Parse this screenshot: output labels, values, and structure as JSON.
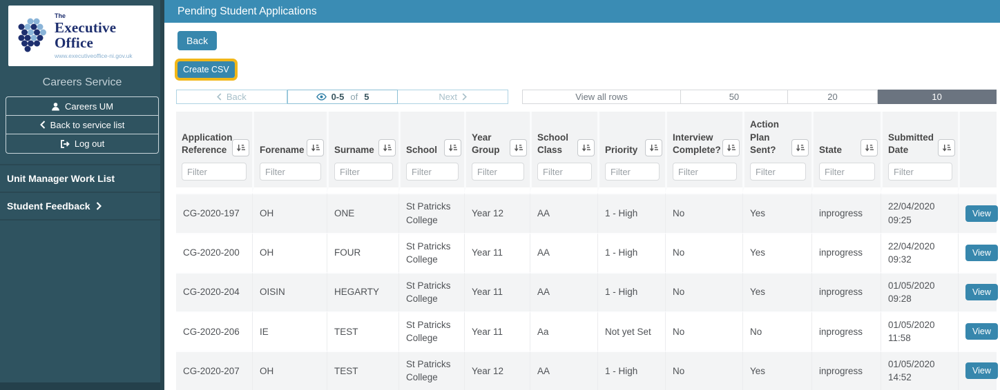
{
  "sidebar": {
    "logo": {
      "the": "The",
      "title": "Executive Office",
      "url": "www.executiveoffice-ni.gov.uk"
    },
    "service_title": "Careers Service",
    "menu": [
      {
        "label": "Careers UM",
        "icon": "user-icon"
      },
      {
        "label": "Back to service list",
        "icon": "chevron-left-icon"
      },
      {
        "label": "Log out",
        "icon": "logout-icon"
      }
    ],
    "links": [
      {
        "label": "Unit Manager Work List"
      },
      {
        "label": "Student Feedback",
        "icon": "chevron-right-icon"
      }
    ]
  },
  "header": {
    "title": "Pending Student Applications"
  },
  "toolbar": {
    "back_label": "Back",
    "create_csv_label": "Create CSV"
  },
  "pagination": {
    "prev_label": "Back",
    "next_label": "Next",
    "range": "0-5",
    "of_word": "of",
    "total": "5",
    "eye_icon": "eye-icon",
    "page_sizes": [
      "View all rows",
      "50",
      "20",
      "10"
    ],
    "active_size": "10"
  },
  "table": {
    "filter_placeholder": "Filter",
    "sort_icon": "sort-amount-icon",
    "view_label": "View",
    "columns": [
      {
        "label": "Application Reference"
      },
      {
        "label": "Forename"
      },
      {
        "label": "Surname"
      },
      {
        "label": "School"
      },
      {
        "label": "Year Group"
      },
      {
        "label": "School Class"
      },
      {
        "label": "Priority"
      },
      {
        "label": "Interview Complete?"
      },
      {
        "label": "Action Plan Sent?"
      },
      {
        "label": "State"
      },
      {
        "label": "Submitted Date"
      },
      {
        "label": ""
      }
    ],
    "rows": [
      [
        "CG-2020-197",
        "OH",
        "ONE",
        "St Patricks College",
        "Year 12",
        "AA",
        "1 - High",
        "No",
        "Yes",
        "inprogress",
        "22/04/2020 09:25"
      ],
      [
        "CG-2020-200",
        "OH",
        "FOUR",
        "St Patricks College",
        "Year 11",
        "AA",
        "1 - High",
        "No",
        "Yes",
        "inprogress",
        "22/04/2020 09:32"
      ],
      [
        "CG-2020-204",
        "OISIN",
        "HEGARTY",
        "St Patricks College",
        "Year 11",
        "AA",
        "1 - High",
        "No",
        "Yes",
        "inprogress",
        "01/05/2020 09:28"
      ],
      [
        "CG-2020-206",
        "IE",
        "TEST",
        "St Patricks College",
        "Year 11",
        "Aa",
        "Not yet Set",
        "No",
        "No",
        "inprogress",
        "01/05/2020 11:58"
      ],
      [
        "CG-2020-207",
        "OH",
        "TEST",
        "St Patricks College",
        "Year 12",
        "AA",
        "1 - High",
        "No",
        "Yes",
        "inprogress",
        "01/05/2020 14:52"
      ]
    ]
  },
  "colors": {
    "sidebar_bg": "#2f5360",
    "header_bar_bg": "#3a8cb4",
    "button_bg": "#3787ad",
    "highlight_outline": "#f2b718",
    "active_page_size_bg": "#6b7480",
    "row_stripe_bg": "#f3f4f5",
    "pager_border": "#aed3e3"
  }
}
